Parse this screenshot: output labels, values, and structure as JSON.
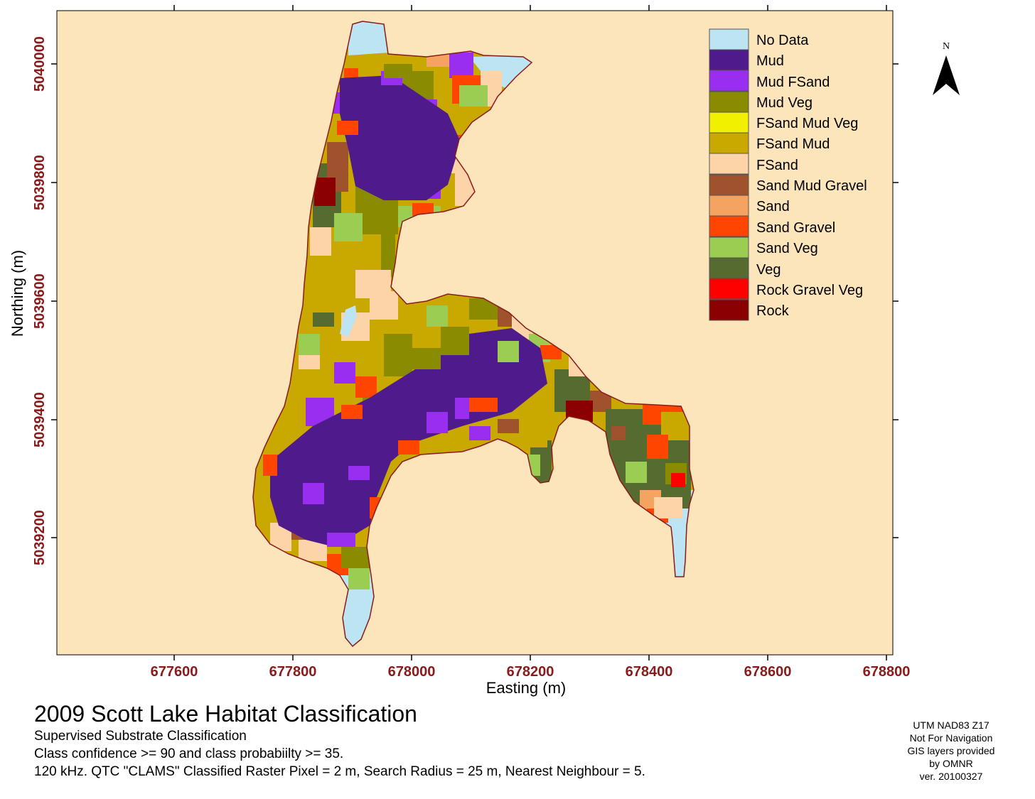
{
  "map": {
    "xlabel": "Easting (m)",
    "ylabel": "Northing (m)",
    "x_ticks": [
      "677600",
      "677800",
      "678000",
      "678200",
      "678400",
      "678600",
      "678800"
    ],
    "y_ticks": [
      "5040000",
      "5039800",
      "5039600",
      "5039400",
      "5039200"
    ],
    "north_label": "N",
    "colors": {
      "background": "#fde5bb",
      "tick_label": "#8b1a1a",
      "shoreline": "#8b1a1a"
    }
  },
  "legend": [
    {
      "label": "No Data",
      "color": "#bde4f2"
    },
    {
      "label": "Mud",
      "color": "#4f1a8c"
    },
    {
      "label": "Mud FSand",
      "color": "#9a2ef0"
    },
    {
      "label": "Mud Veg",
      "color": "#8b8b00"
    },
    {
      "label": "FSand Mud Veg",
      "color": "#f0f000"
    },
    {
      "label": "FSand Mud",
      "color": "#c9a800"
    },
    {
      "label": "FSand",
      "color": "#fdd3a8"
    },
    {
      "label": "Sand Mud Gravel",
      "color": "#a0522d"
    },
    {
      "label": "Sand",
      "color": "#f4a460"
    },
    {
      "label": "Sand Gravel",
      "color": "#ff4500"
    },
    {
      "label": "Sand Veg",
      "color": "#9acd52"
    },
    {
      "label": "Veg",
      "color": "#556b2f"
    },
    {
      "label": "Rock Gravel Veg",
      "color": "#ff0000"
    },
    {
      "label": "Rock",
      "color": "#8b0000"
    }
  ],
  "footer": {
    "title": "2009 Scott Lake Habitat Classification",
    "lines": [
      "Supervised Substrate Classification",
      "Class confidence >= 90 and class probabiilty >= 35.",
      "120 kHz.  QTC \"CLAMS\" Classified Raster Pixel = 2 m, Search Radius = 25 m, Nearest Neighbour = 5."
    ]
  },
  "credits": [
    "UTM NAD83 Z17",
    "Not For Navigation",
    "GIS layers provided",
    "by OMNR",
    "ver. 20100327"
  ]
}
